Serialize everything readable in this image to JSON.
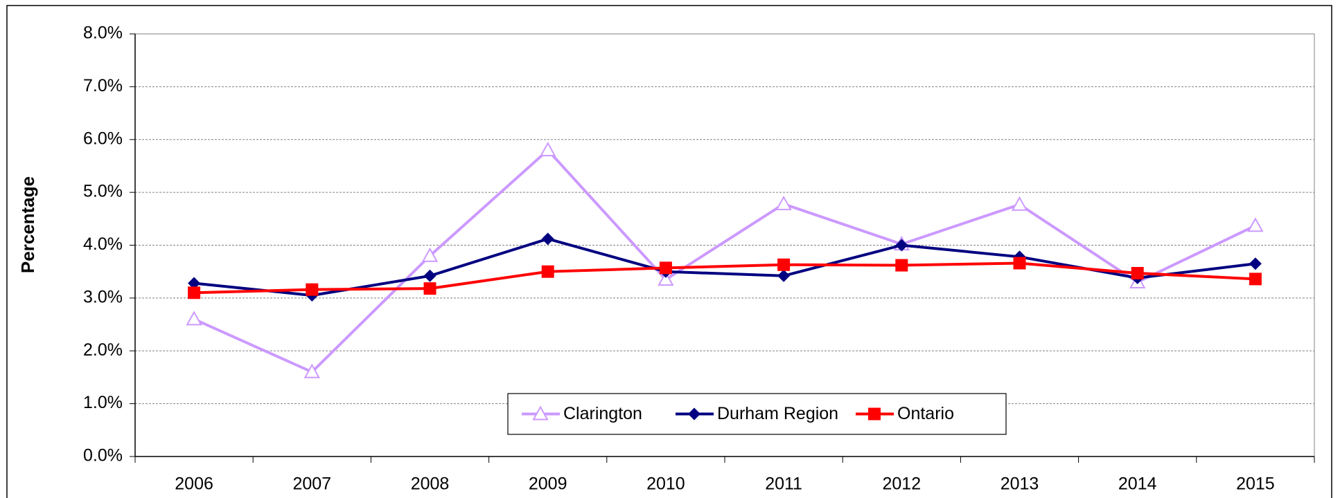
{
  "chart_data": {
    "type": "line",
    "y_label": "Percentage",
    "categories": [
      "2006",
      "2007",
      "2008",
      "2009",
      "2010",
      "2011",
      "2012",
      "2013",
      "2014",
      "2015"
    ],
    "series": [
      {
        "name": "Clarington",
        "color": "#cc99ff",
        "marker": "triangle",
        "values": [
          2.6,
          1.6,
          3.8,
          5.8,
          3.35,
          4.78,
          4.02,
          4.77,
          3.3,
          4.37
        ]
      },
      {
        "name": "Durham Region",
        "color": "#000080",
        "marker": "diamond",
        "values": [
          3.28,
          3.05,
          3.42,
          4.12,
          3.5,
          3.42,
          4.0,
          3.78,
          3.38,
          3.65
        ]
      },
      {
        "name": "Ontario",
        "color": "#ff0000",
        "marker": "square",
        "values": [
          3.1,
          3.16,
          3.18,
          3.5,
          3.57,
          3.63,
          3.62,
          3.66,
          3.47,
          3.36
        ]
      }
    ],
    "ylim": [
      0,
      8
    ],
    "yticks": [
      {
        "value": 0,
        "label": "0.0%"
      },
      {
        "value": 1,
        "label": "1.0%"
      },
      {
        "value": 2,
        "label": "2.0%"
      },
      {
        "value": 3,
        "label": "3.0%"
      },
      {
        "value": 4,
        "label": "4.0%"
      },
      {
        "value": 5,
        "label": "5.0%"
      },
      {
        "value": 6,
        "label": "6.0%"
      },
      {
        "value": 7,
        "label": "7.0%"
      },
      {
        "value": 8,
        "label": "8.0%"
      }
    ],
    "grid": true,
    "legend": "bottom"
  }
}
